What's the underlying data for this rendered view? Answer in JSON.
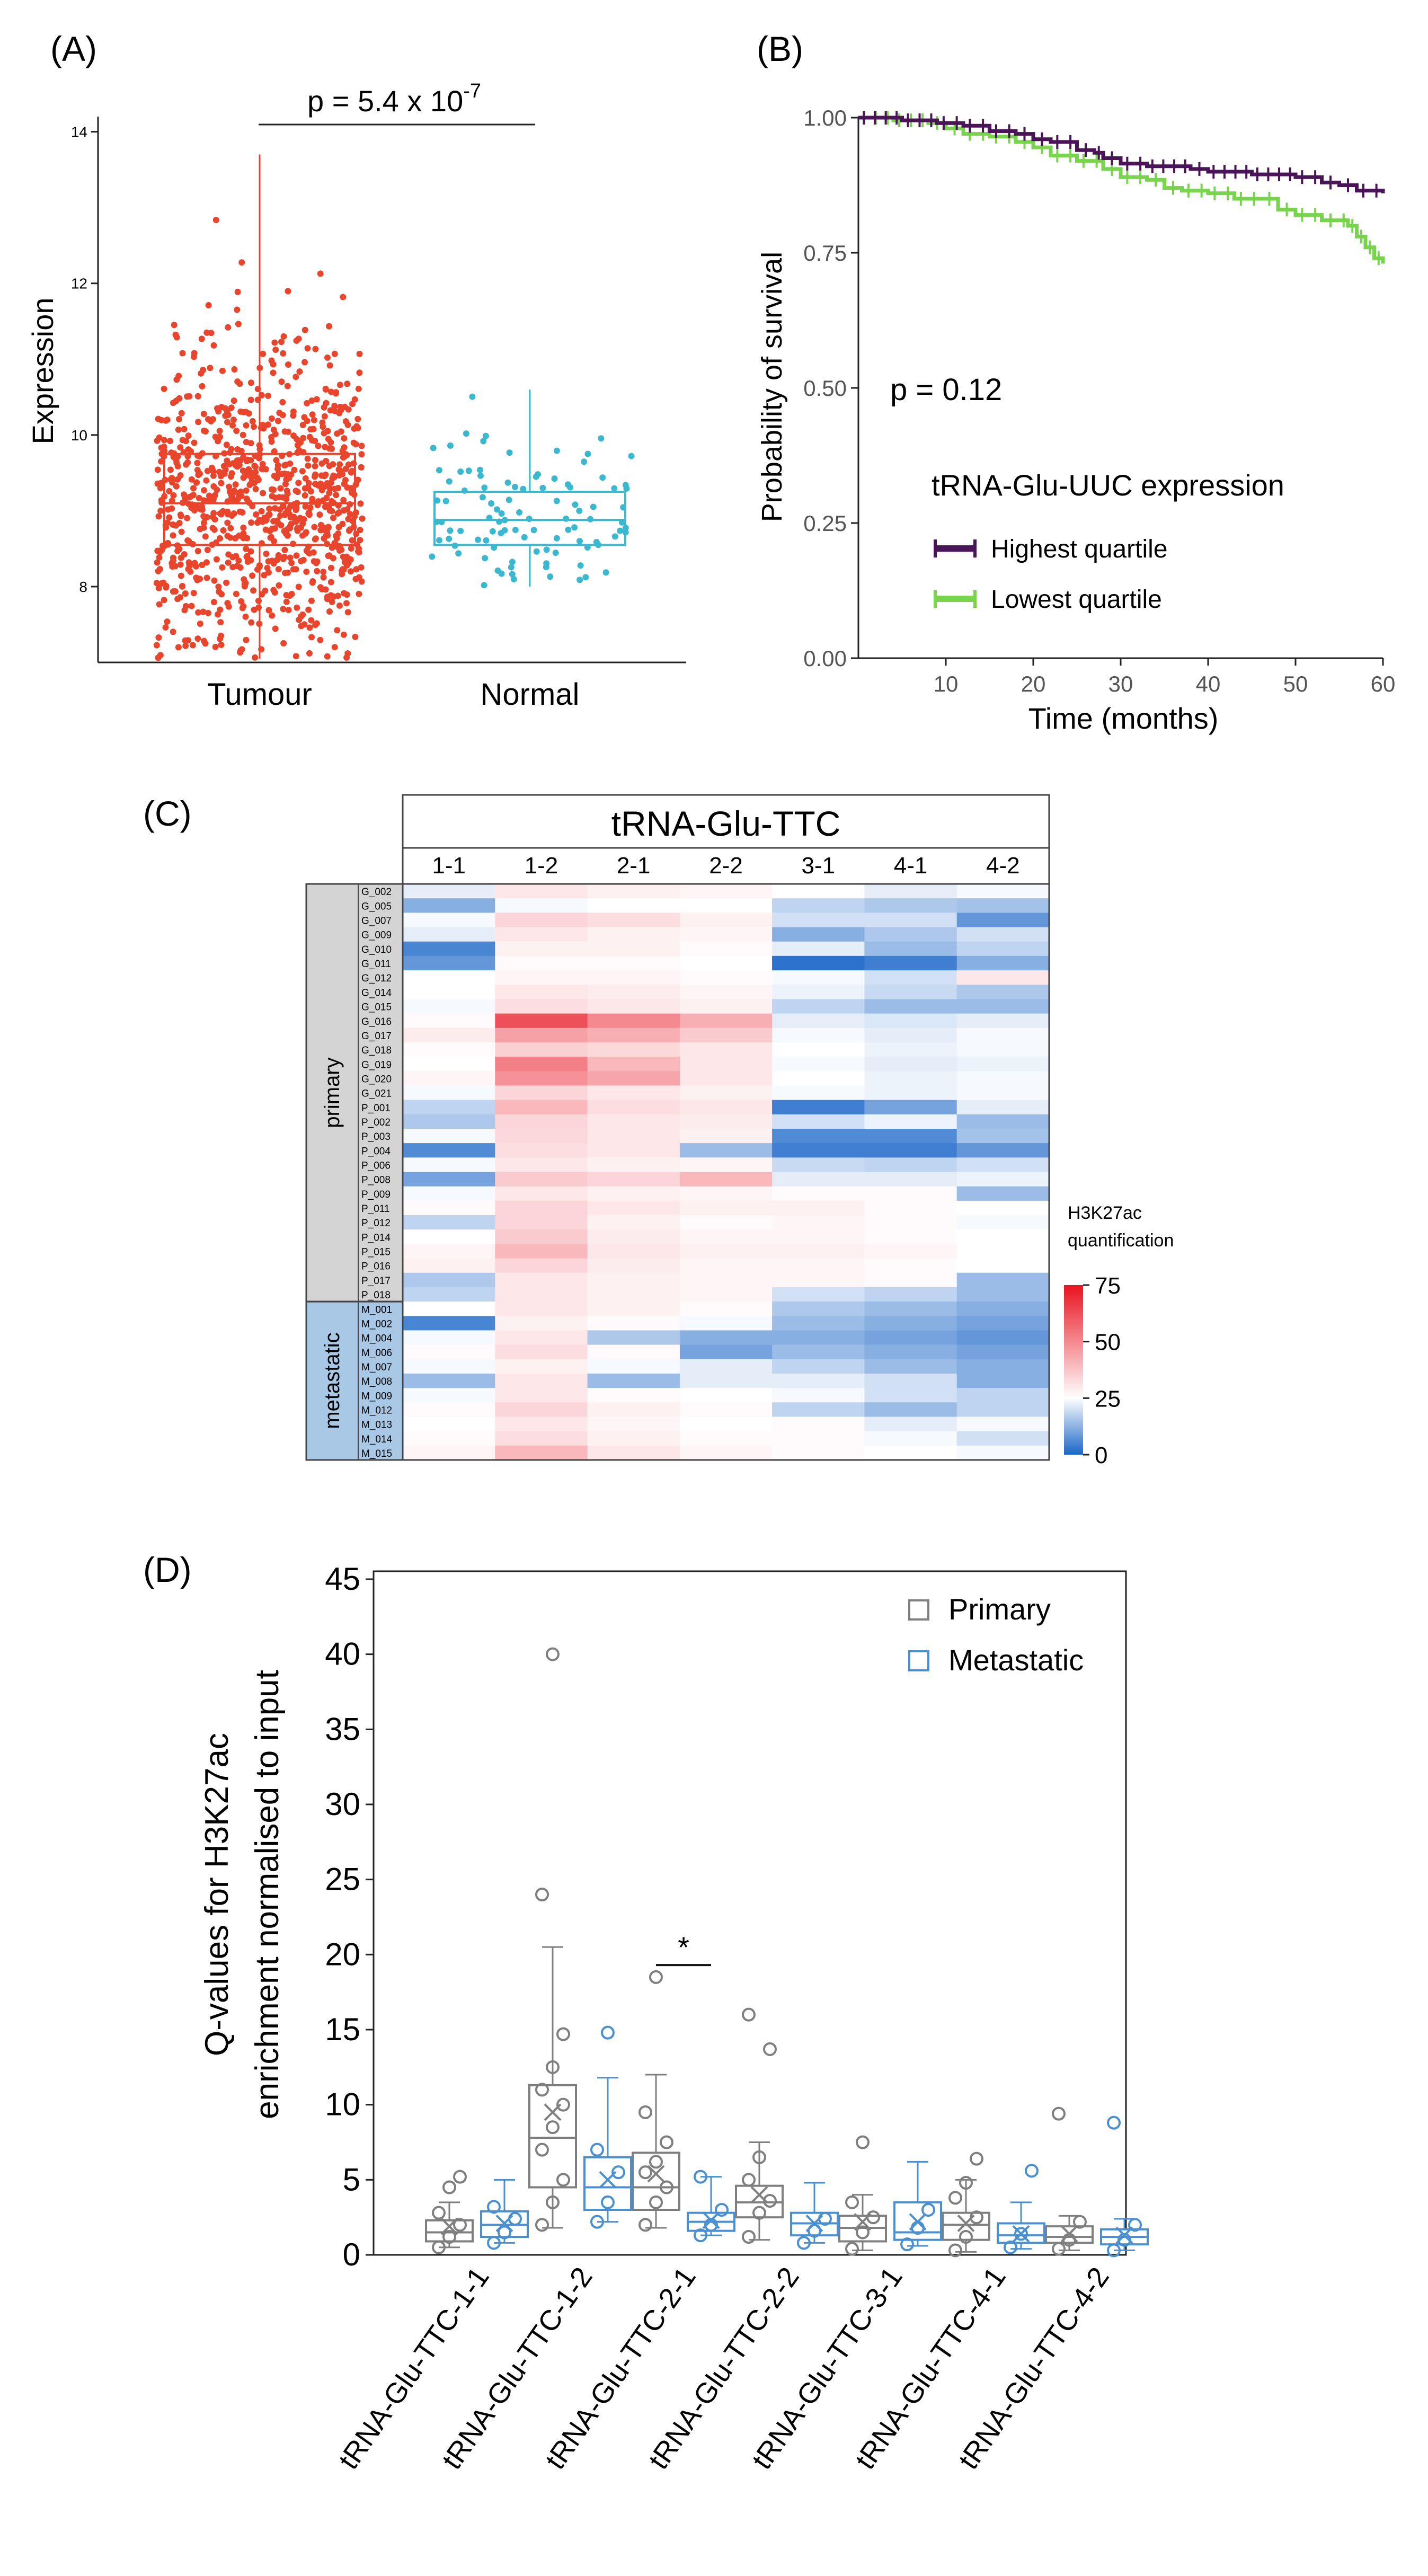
{
  "colors": {
    "tumour": "#e8452c",
    "normal": "#3bb8cf",
    "highest": "#4b1358",
    "lowest": "#77d44c",
    "primary": "#7f7f7f",
    "metastatic": "#4a90d0",
    "heat_low": "#1a66c8",
    "heat_mid": "#ffffff",
    "heat_high": "#e8131f",
    "band_primary": "#d4d4d4",
    "band_metastatic": "#a8c8e6"
  },
  "chart_data": [
    {
      "panel_label": "(A)",
      "type": "scatter",
      "title": "",
      "categories": [
        "Tumour",
        "Normal"
      ],
      "ylabel": "Expression",
      "xlabel": "",
      "ylim": [
        7,
        14.2
      ],
      "yticks": [
        8,
        10,
        12,
        14
      ],
      "pvalue_prefix": "p = 5.4 x 10",
      "pvalue_exponent": "-7",
      "boxes": [
        {
          "name": "Tumour",
          "q1": 8.55,
          "median": 9.1,
          "q3": 9.75,
          "whisker_low": 7.05,
          "whisker_high": 13.7,
          "n_points": 900,
          "color_key": "tumour"
        },
        {
          "name": "Normal",
          "q1": 8.55,
          "median": 8.88,
          "q3": 9.25,
          "whisker_low": 8.0,
          "whisker_high": 10.6,
          "n_points": 100,
          "color_key": "normal"
        }
      ]
    },
    {
      "panel_label": "(B)",
      "type": "line",
      "title": "",
      "xlabel": "Time (months)",
      "ylabel": "Probability of survival",
      "xlim": [
        0,
        60
      ],
      "ylim": [
        0,
        1
      ],
      "xticks": [
        10,
        20,
        30,
        40,
        50,
        60
      ],
      "yticks": [
        "0.00",
        "0.25",
        "0.50",
        "0.75",
        "1.00"
      ],
      "pvalue": "p = 0.12",
      "legend_title": "tRNA-Glu-UUC expression",
      "series": [
        {
          "name": "Highest quartile",
          "color_key": "highest",
          "x": [
            0,
            5,
            9,
            12,
            15,
            18,
            20,
            22,
            25,
            27,
            28,
            30,
            33,
            38,
            40,
            45,
            50,
            53,
            55,
            57,
            60
          ],
          "y": [
            1.0,
            0.995,
            0.99,
            0.985,
            0.975,
            0.97,
            0.96,
            0.955,
            0.94,
            0.935,
            0.925,
            0.915,
            0.91,
            0.905,
            0.9,
            0.895,
            0.89,
            0.88,
            0.875,
            0.865,
            0.86
          ]
        },
        {
          "name": "Lowest quartile",
          "color_key": "lowest",
          "x": [
            0,
            4,
            8,
            10,
            12,
            15,
            18,
            20,
            22,
            25,
            28,
            30,
            33,
            35,
            37,
            40,
            43,
            46,
            48,
            50,
            53,
            55,
            56,
            57,
            58,
            59,
            60
          ],
          "y": [
            1.0,
            0.995,
            0.99,
            0.98,
            0.97,
            0.965,
            0.955,
            0.945,
            0.93,
            0.92,
            0.905,
            0.89,
            0.885,
            0.87,
            0.865,
            0.86,
            0.85,
            0.85,
            0.83,
            0.82,
            0.81,
            0.81,
            0.8,
            0.78,
            0.76,
            0.74,
            0.73
          ]
        }
      ]
    },
    {
      "panel_label": "(C)",
      "type": "heatmap",
      "title": "tRNA-Glu-TTC",
      "columns": [
        "1-1",
        "1-2",
        "2-1",
        "2-2",
        "3-1",
        "4-1",
        "4-2"
      ],
      "groups": [
        {
          "name": "primary",
          "rows": [
            "G_002",
            "G_005",
            "G_007",
            "G_009",
            "G_010",
            "G_011",
            "G_012",
            "G_014",
            "G_015",
            "G_016",
            "G_017",
            "G_018",
            "G_019",
            "G_020",
            "G_021",
            "P_001",
            "P_002",
            "P_003",
            "P_004",
            "P_006",
            "P_008",
            "P_009",
            "P_011",
            "P_012",
            "P_014",
            "P_015",
            "P_016",
            "P_017",
            "P_018"
          ]
        },
        {
          "name": "metastatic",
          "rows": [
            "M_001",
            "M_002",
            "M_004",
            "M_006",
            "M_007",
            "M_008",
            "M_009",
            "M_012",
            "M_013",
            "M_014",
            "M_015"
          ]
        }
      ],
      "values": [
        [
          22,
          30,
          28,
          27,
          25,
          22,
          24
        ],
        [
          12,
          24,
          25,
          25,
          18,
          16,
          15
        ],
        [
          24,
          34,
          32,
          28,
          20,
          20,
          8
        ],
        [
          22,
          30,
          28,
          27,
          12,
          16,
          20
        ],
        [
          5,
          28,
          28,
          26,
          22,
          14,
          18
        ],
        [
          8,
          26,
          26,
          25,
          2,
          4,
          12
        ],
        [
          25,
          27,
          27,
          26,
          24,
          20,
          30
        ],
        [
          25,
          30,
          29,
          27,
          23,
          19,
          16
        ],
        [
          24,
          32,
          30,
          28,
          18,
          14,
          14
        ],
        [
          26,
          62,
          50,
          42,
          22,
          21,
          22
        ],
        [
          29,
          45,
          42,
          36,
          24,
          22,
          24
        ],
        [
          26,
          35,
          33,
          30,
          25,
          23,
          24
        ],
        [
          25,
          52,
          40,
          30,
          24,
          22,
          23
        ],
        [
          27,
          48,
          44,
          30,
          25,
          23,
          24
        ],
        [
          24,
          34,
          30,
          28,
          24,
          23,
          24
        ],
        [
          18,
          40,
          32,
          30,
          4,
          10,
          22
        ],
        [
          16,
          34,
          30,
          29,
          20,
          23,
          14
        ],
        [
          24,
          33,
          30,
          28,
          6,
          6,
          15
        ],
        [
          6,
          32,
          30,
          14,
          4,
          4,
          8
        ],
        [
          24,
          30,
          28,
          27,
          19,
          18,
          20
        ],
        [
          10,
          36,
          34,
          40,
          22,
          22,
          23
        ],
        [
          24,
          30,
          28,
          27,
          26,
          26,
          14
        ],
        [
          26,
          34,
          30,
          28,
          28,
          26,
          25
        ],
        [
          18,
          34,
          28,
          26,
          27,
          26,
          24
        ],
        [
          25,
          36,
          29,
          27,
          27,
          26,
          25
        ],
        [
          27,
          40,
          30,
          28,
          28,
          27,
          25
        ],
        [
          28,
          34,
          29,
          27,
          27,
          26,
          25
        ],
        [
          16,
          30,
          28,
          27,
          27,
          26,
          14
        ],
        [
          18,
          30,
          28,
          27,
          20,
          18,
          14
        ],
        [
          25,
          30,
          28,
          26,
          16,
          14,
          12
        ],
        [
          5,
          28,
          26,
          24,
          14,
          12,
          10
        ],
        [
          24,
          30,
          16,
          12,
          12,
          10,
          8
        ],
        [
          26,
          32,
          26,
          10,
          14,
          12,
          10
        ],
        [
          24,
          28,
          24,
          22,
          18,
          14,
          12
        ],
        [
          14,
          30,
          14,
          22,
          22,
          20,
          12
        ],
        [
          24,
          30,
          26,
          25,
          24,
          20,
          18
        ],
        [
          26,
          34,
          28,
          26,
          18,
          14,
          18
        ],
        [
          25,
          30,
          27,
          25,
          26,
          22,
          24
        ],
        [
          26,
          32,
          28,
          26,
          26,
          24,
          20
        ],
        [
          27,
          40,
          30,
          27,
          26,
          25,
          24
        ]
      ],
      "colorbar_label_line1": "H3K27ac",
      "colorbar_label_line2": "quantification",
      "colorbar_ticks": [
        0,
        25,
        50,
        75
      ],
      "value_range": [
        0,
        75
      ]
    },
    {
      "panel_label": "(D)",
      "type": "box",
      "title": "",
      "ylabel_line1": "Q-values for H3K27ac",
      "ylabel_line2": "enrichment normalised to input",
      "ylim": [
        0,
        45
      ],
      "yticks": [
        0,
        5,
        10,
        15,
        20,
        25,
        30,
        35,
        40,
        45
      ],
      "categories": [
        "tRNA-Glu-TTC-1-1",
        "tRNA-Glu-TTC-1-2",
        "tRNA-Glu-TTC-2-1",
        "tRNA-Glu-TTC-2-2",
        "tRNA-Glu-TTC-3-1",
        "tRNA-Glu-TTC-4-1",
        "tRNA-Glu-TTC-4-2"
      ],
      "legend": [
        "Primary",
        "Metastatic"
      ],
      "significance_marker": "*",
      "significance_category_index": 2,
      "series": [
        {
          "name": "Primary",
          "color_key": "primary",
          "boxes": [
            {
              "low": 0.5,
              "q1": 0.9,
              "median": 1.5,
              "q3": 2.3,
              "high": 3.5,
              "mean": 1.9,
              "points": [
                0.5,
                1.2,
                2.0,
                2.8,
                4.5,
                5.2
              ]
            },
            {
              "low": 1.8,
              "q1": 4.5,
              "median": 7.8,
              "q3": 11.3,
              "high": 20.5,
              "mean": 9.5,
              "points": [
                2.0,
                3.5,
                5.0,
                7.0,
                8.5,
                10.0,
                11.0,
                12.5,
                14.7,
                24.0,
                40.0
              ]
            },
            {
              "low": 1.8,
              "q1": 3.0,
              "median": 4.5,
              "q3": 6.8,
              "high": 12.0,
              "mean": 5.4,
              "points": [
                2.0,
                3.5,
                4.5,
                5.5,
                6.2,
                7.5,
                9.5,
                18.5
              ]
            },
            {
              "low": 1.0,
              "q1": 2.5,
              "median": 3.5,
              "q3": 4.6,
              "high": 7.5,
              "mean": 4.0,
              "points": [
                1.2,
                2.8,
                3.6,
                5.0,
                6.5,
                13.7,
                16.0
              ]
            },
            {
              "low": 0.3,
              "q1": 0.9,
              "median": 1.8,
              "q3": 2.6,
              "high": 4.0,
              "mean": 2.2,
              "points": [
                0.4,
                1.5,
                2.5,
                3.5,
                7.5
              ]
            },
            {
              "low": 0.2,
              "q1": 1.0,
              "median": 2.0,
              "q3": 2.8,
              "high": 5.0,
              "mean": 2.1,
              "points": [
                0.3,
                1.2,
                2.5,
                3.8,
                4.8,
                6.4
              ]
            },
            {
              "low": 0.3,
              "q1": 0.8,
              "median": 1.2,
              "q3": 1.9,
              "high": 2.6,
              "mean": 1.4,
              "points": [
                0.4,
                1.0,
                2.2,
                9.4
              ]
            }
          ]
        },
        {
          "name": "Metastatic",
          "color_key": "metastatic",
          "boxes": [
            {
              "low": 0.8,
              "q1": 1.2,
              "median": 2.0,
              "q3": 2.9,
              "high": 5.0,
              "mean": 2.1,
              "points": [
                0.8,
                1.5,
                2.4,
                3.2
              ]
            },
            {
              "low": 2.2,
              "q1": 3.0,
              "median": 4.5,
              "q3": 6.5,
              "high": 11.8,
              "mean": 5.0,
              "points": [
                2.2,
                3.5,
                5.5,
                7.0,
                14.8
              ]
            },
            {
              "low": 1.3,
              "q1": 1.6,
              "median": 2.2,
              "q3": 2.8,
              "high": 5.2,
              "mean": 2.3,
              "points": [
                1.3,
                2.0,
                3.0,
                5.2
              ]
            },
            {
              "low": 0.8,
              "q1": 1.3,
              "median": 2.1,
              "q3": 2.8,
              "high": 4.8,
              "mean": 2.1,
              "points": [
                0.8,
                1.6,
                2.4
              ]
            },
            {
              "low": 0.6,
              "q1": 1.0,
              "median": 1.5,
              "q3": 3.5,
              "high": 6.2,
              "mean": 2.2,
              "points": [
                0.7,
                1.8,
                3.0
              ]
            },
            {
              "low": 0.4,
              "q1": 0.8,
              "median": 1.3,
              "q3": 2.1,
              "high": 3.5,
              "mean": 1.4,
              "points": [
                0.5,
                1.4,
                5.6
              ]
            },
            {
              "low": 0.3,
              "q1": 0.7,
              "median": 1.2,
              "q3": 1.7,
              "high": 2.4,
              "mean": 1.3,
              "points": [
                0.3,
                1.0,
                2.0,
                8.8
              ]
            }
          ]
        }
      ]
    }
  ]
}
